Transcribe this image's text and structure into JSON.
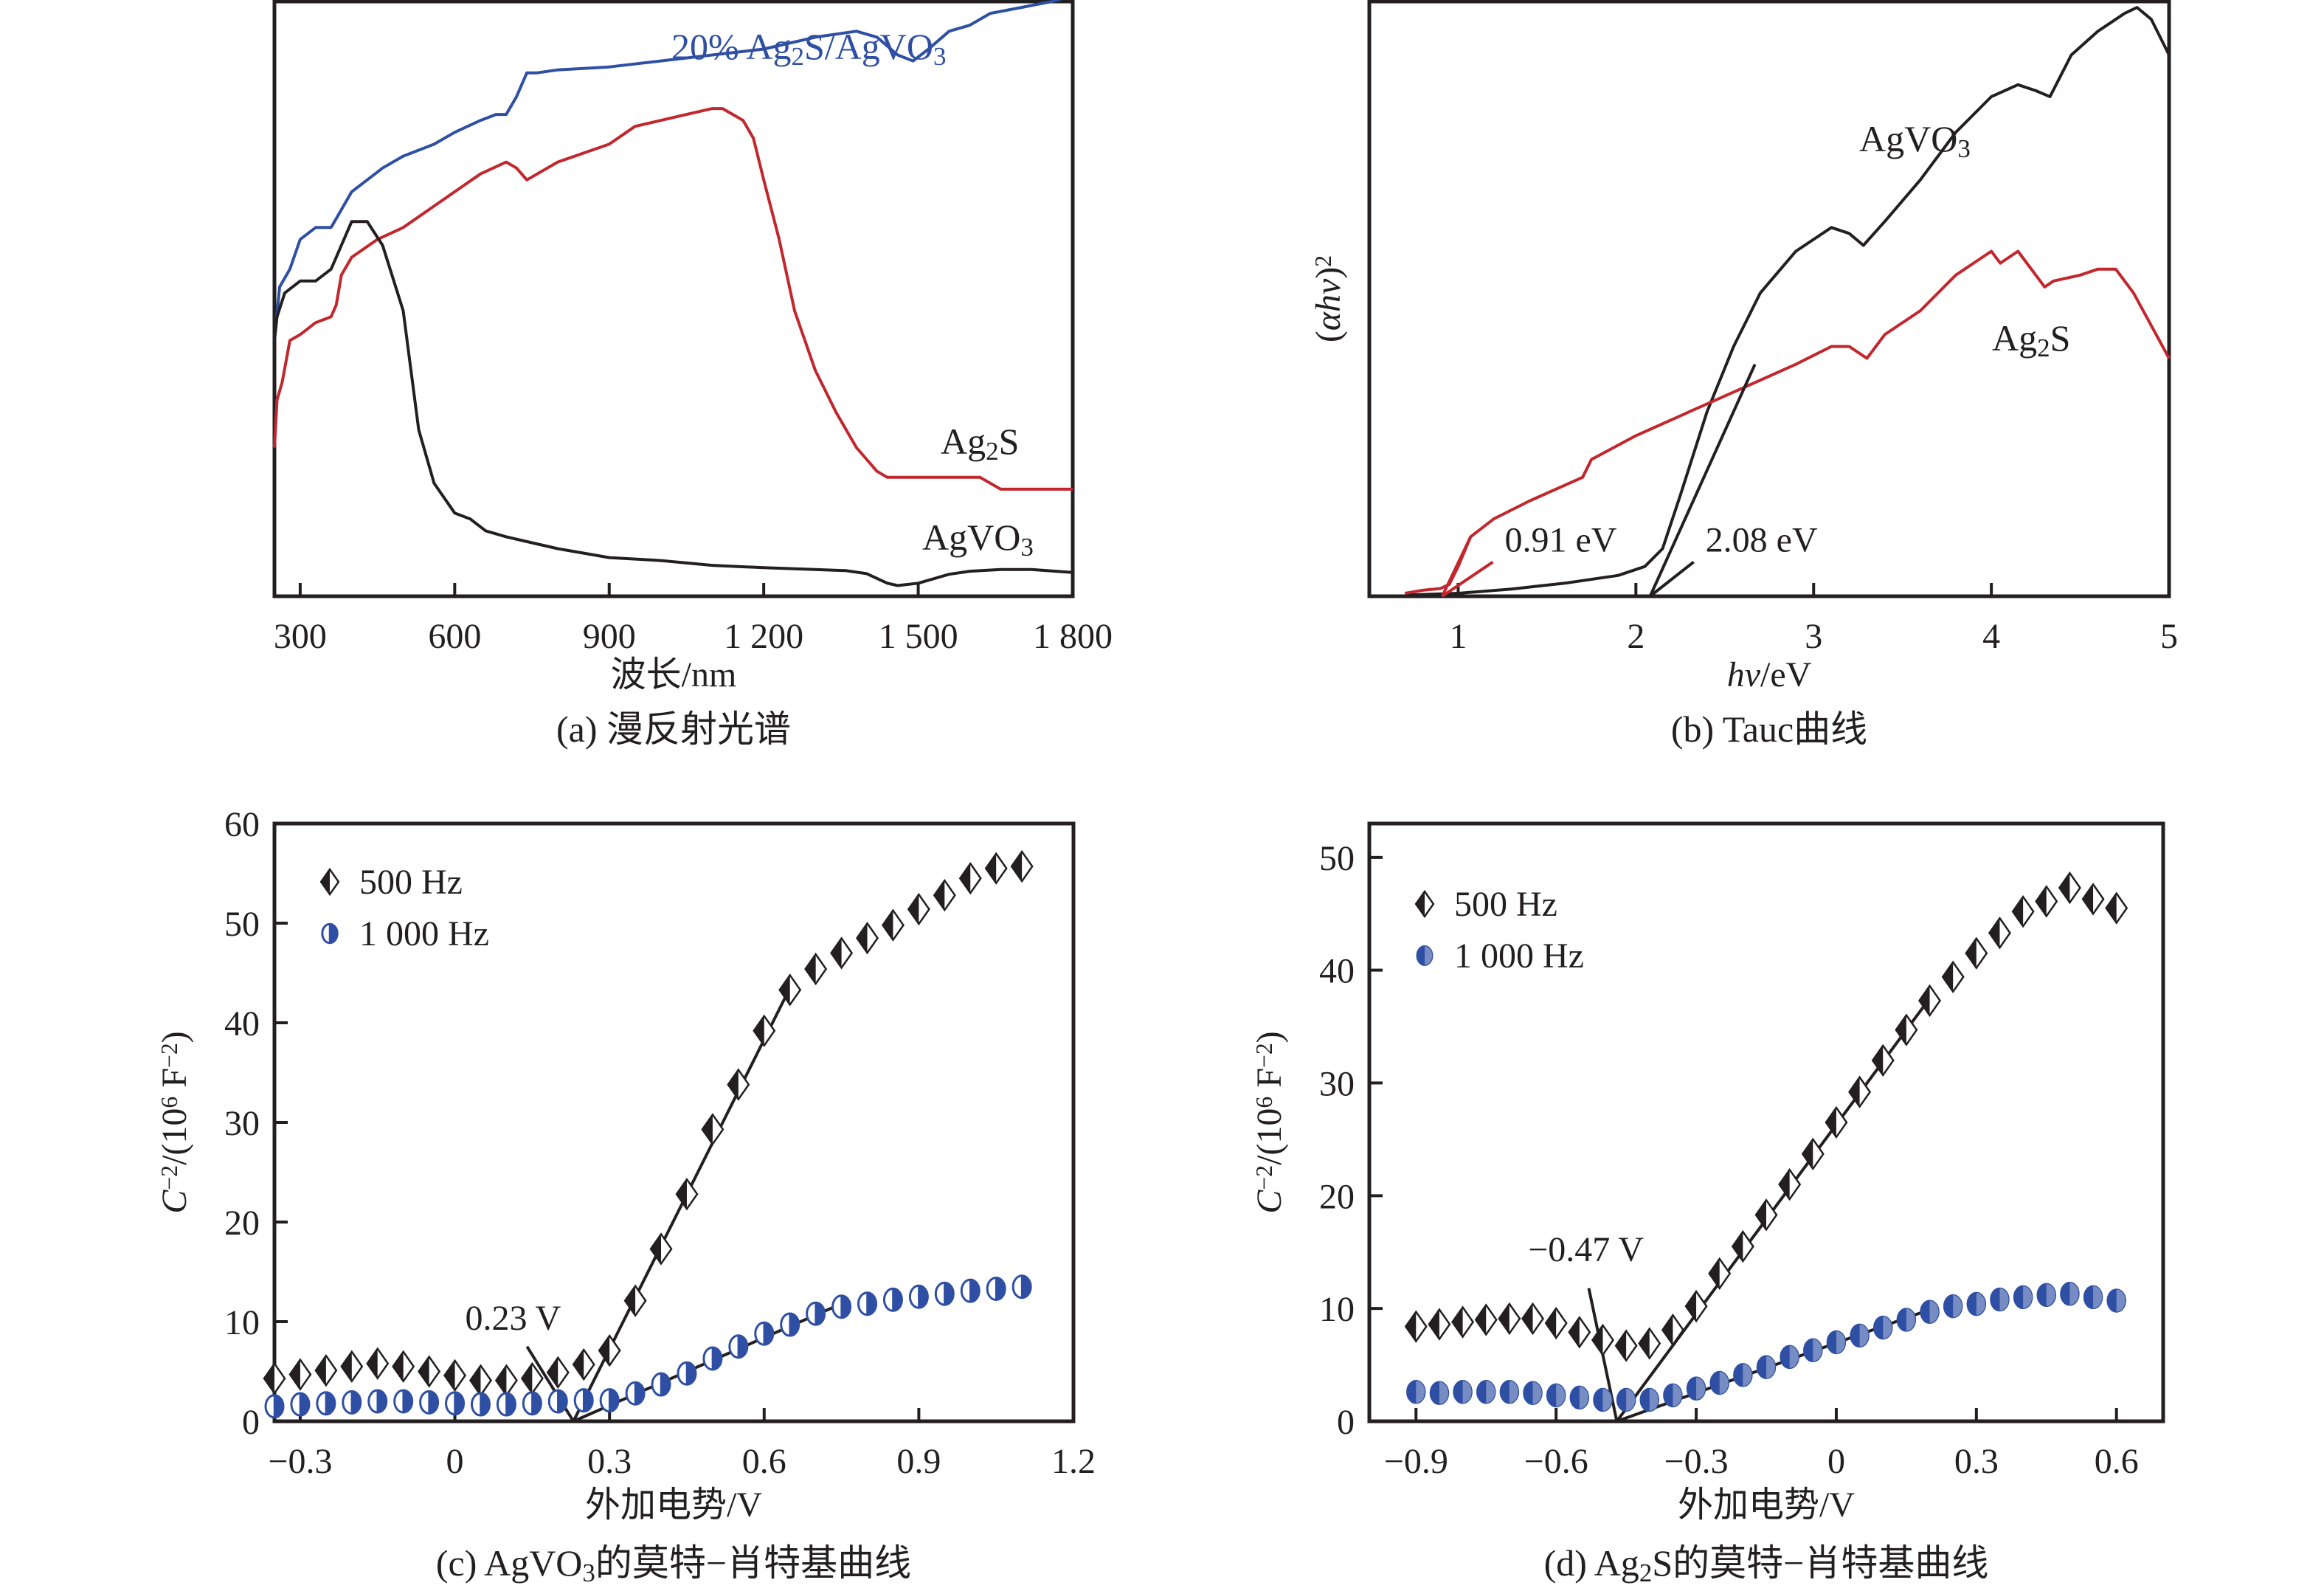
{
  "colors": {
    "black": "#231f20",
    "red": "#c1272d",
    "blue": "#2e4fa3"
  },
  "chart_data": [
    {
      "id": "a",
      "type": "line",
      "caption": "(a) 漫反射光谱",
      "xlabel": "波长/nm",
      "ylabel": "",
      "xlim": [
        250,
        1800
      ],
      "ylim": [
        0,
        100
      ],
      "xticks": [
        300,
        600,
        900,
        1200,
        1500,
        1800
      ],
      "xtick_labels": [
        "300",
        "600",
        "900",
        "1 200",
        "1 500",
        "1 800"
      ],
      "yticks": [],
      "grid": false,
      "series": [
        {
          "name": "20% Ag2S/AgVO3",
          "label_parts": [
            [
              "20% Ag",
              ""
            ],
            [
              "2",
              "sub"
            ],
            [
              "S/AgVO",
              ""
            ],
            [
              "3",
              "sub"
            ]
          ],
          "color": "blue",
          "x": [
            250,
            260,
            280,
            300,
            330,
            360,
            380,
            400,
            430,
            460,
            500,
            560,
            600,
            650,
            680,
            700,
            720,
            740,
            760,
            800,
            900,
            1000,
            1100,
            1200,
            1300,
            1380,
            1420,
            1460,
            1490,
            1520,
            1560,
            1600,
            1640,
            1700,
            1760,
            1800
          ],
          "y": [
            43,
            52,
            55,
            60,
            62,
            62,
            65,
            68,
            70,
            72,
            74,
            76,
            78,
            80,
            81,
            81,
            84,
            88,
            88,
            88.5,
            89,
            90,
            91,
            92,
            94,
            95,
            94,
            91,
            90,
            92,
            95,
            96,
            98,
            99,
            100,
            101
          ]
        },
        {
          "name": "Ag2S",
          "label_parts": [
            [
              "Ag",
              ""
            ],
            [
              "2",
              "sub"
            ],
            [
              "S",
              ""
            ]
          ],
          "color": "red",
          "x": [
            250,
            255,
            265,
            280,
            300,
            330,
            360,
            370,
            380,
            400,
            450,
            500,
            600,
            650,
            700,
            720,
            740,
            800,
            900,
            950,
            1000,
            1050,
            1100,
            1120,
            1140,
            1160,
            1180,
            1200,
            1230,
            1260,
            1300,
            1340,
            1380,
            1420,
            1440,
            1460,
            1500,
            1540,
            1580,
            1620,
            1660,
            1700,
            1760,
            1800
          ],
          "y": [
            25,
            33,
            36,
            43,
            44,
            46,
            47,
            49,
            54,
            57,
            60,
            62,
            68,
            71,
            73,
            72,
            70,
            73,
            76,
            79,
            80,
            81,
            82,
            82,
            81,
            80,
            77,
            70,
            60,
            48,
            38,
            31,
            25,
            21,
            20,
            20,
            20,
            20,
            20,
            20,
            18,
            18,
            18,
            18
          ]
        },
        {
          "name": "AgVO3",
          "label_parts": [
            [
              "AgVO",
              ""
            ],
            [
              "3",
              "sub"
            ]
          ],
          "color": "black",
          "x": [
            250,
            255,
            270,
            300,
            330,
            360,
            380,
            400,
            430,
            460,
            500,
            530,
            560,
            600,
            630,
            660,
            700,
            750,
            800,
            900,
            1000,
            1100,
            1200,
            1300,
            1360,
            1400,
            1440,
            1460,
            1500,
            1560,
            1600,
            1660,
            1720,
            1800
          ],
          "y": [
            43,
            47,
            51,
            53,
            53,
            55,
            59,
            63,
            63,
            59,
            48,
            28,
            19,
            14,
            13,
            11,
            10,
            9,
            8,
            6.5,
            6,
            5.2,
            4.8,
            4.5,
            4.3,
            3.8,
            2.2,
            1.8,
            2.2,
            3.7,
            4.2,
            4.5,
            4.5,
            4.0
          ]
        }
      ]
    },
    {
      "id": "b",
      "type": "line",
      "caption": "(b) Tauc曲线",
      "xlabel_parts": [
        [
          "hv",
          "italic"
        ],
        [
          "/eV",
          ""
        ]
      ],
      "ylabel_parts": [
        [
          "(",
          ""
        ],
        [
          "αhv",
          "italic"
        ],
        [
          ")",
          ""
        ],
        [
          "2",
          "sup"
        ]
      ],
      "xlim": [
        0.5,
        5
      ],
      "ylim": [
        0,
        100
      ],
      "xticks": [
        1,
        2,
        3,
        4,
        5
      ],
      "xtick_labels": [
        "1",
        "2",
        "3",
        "4",
        "5"
      ],
      "yticks": [],
      "grid": false,
      "series": [
        {
          "name": "AgVO3",
          "label_parts": [
            [
              "AgVO",
              ""
            ],
            [
              "3",
              "sub"
            ]
          ],
          "color": "black",
          "x": [
            0.7,
            1.0,
            1.3,
            1.6,
            1.9,
            2.05,
            2.15,
            2.25,
            2.4,
            2.55,
            2.7,
            2.9,
            3.1,
            3.2,
            3.28,
            3.4,
            3.6,
            3.8,
            4.0,
            4.15,
            4.25,
            4.33,
            4.45,
            4.6,
            4.75,
            4.82,
            4.9,
            5.0
          ],
          "y": [
            0.2,
            0.5,
            1.2,
            2.2,
            3.5,
            5,
            8,
            17,
            31,
            42,
            51,
            58,
            62,
            61,
            59,
            63,
            70,
            78,
            84,
            86,
            85,
            84,
            91,
            95,
            98,
            99,
            97,
            91
          ]
        },
        {
          "name": "Ag2S",
          "label_parts": [
            [
              "Ag",
              ""
            ],
            [
              "2",
              "sub"
            ],
            [
              "S",
              ""
            ]
          ],
          "color": "red",
          "x": [
            0.7,
            0.8,
            0.9,
            0.95,
            1.0,
            1.07,
            1.2,
            1.4,
            1.7,
            1.75,
            2.0,
            2.3,
            2.6,
            2.9,
            3.1,
            3.2,
            3.3,
            3.4,
            3.6,
            3.8,
            4.0,
            4.05,
            4.15,
            4.3,
            4.35,
            4.5,
            4.6,
            4.7,
            4.8,
            5.0
          ],
          "y": [
            0.5,
            1,
            1.3,
            2,
            5,
            10,
            13,
            16,
            20,
            23,
            27,
            31,
            35,
            39,
            42,
            42,
            40,
            44,
            48,
            54,
            58,
            56,
            58,
            52,
            53,
            54,
            55,
            55,
            51,
            40
          ]
        },
        {
          "name": "AgVO3 tangent",
          "color": "black",
          "x": [
            2.08,
            2.67
          ],
          "y": [
            0,
            39
          ]
        },
        {
          "name": "Ag2S tangent",
          "color": "red",
          "x": [
            0.91,
            1.07
          ],
          "y": [
            0,
            10
          ]
        }
      ],
      "annotations": [
        {
          "text": "0.91 eV",
          "x": 0.91,
          "y": 0,
          "color": "red",
          "label_x": 1.22,
          "label_y": 7.5
        },
        {
          "text": "2.08 eV",
          "x": 2.08,
          "y": 0,
          "color": "black",
          "label_x": 2.35,
          "label_y": 7.5
        }
      ]
    },
    {
      "id": "c",
      "type": "scatter",
      "caption_parts": [
        [
          "(c) AgVO",
          ""
        ],
        [
          "3",
          "sub"
        ],
        [
          "的莫特−肖特基曲线",
          ""
        ]
      ],
      "xlabel": "外加电势/V",
      "ylabel_parts": [
        [
          "C",
          "italic"
        ],
        [
          "−2",
          "sup"
        ],
        [
          "/(10",
          ""
        ],
        [
          "6",
          "sup"
        ],
        [
          " F",
          ""
        ],
        [
          "−2",
          "sup"
        ],
        [
          ")",
          ""
        ]
      ],
      "xlim": [
        -0.35,
        1.2
      ],
      "ylim": [
        0,
        60
      ],
      "xticks": [
        -0.3,
        0,
        0.3,
        0.6,
        0.9,
        1.2
      ],
      "xtick_labels": [
        "−0.3",
        "0",
        "0.3",
        "0.6",
        "0.9",
        "1.2"
      ],
      "yticks": [
        0,
        10,
        20,
        30,
        40,
        50,
        60
      ],
      "ytick_labels": [
        "0",
        "10",
        "20",
        "30",
        "40",
        "50",
        "60"
      ],
      "grid": false,
      "legend": {
        "position": "top-left",
        "entries": [
          "500 Hz",
          "1 000 Hz"
        ]
      },
      "series": [
        {
          "name": "500 Hz",
          "marker": "half-diamond",
          "color": "black",
          "x": [
            -0.35,
            -0.3,
            -0.25,
            -0.2,
            -0.15,
            -0.1,
            -0.05,
            0,
            0.05,
            0.1,
            0.15,
            0.2,
            0.25,
            0.3,
            0.35,
            0.4,
            0.45,
            0.5,
            0.55,
            0.6,
            0.65,
            0.7,
            0.75,
            0.8,
            0.85,
            0.9,
            0.95,
            1.0,
            1.05,
            1.1
          ],
          "y": [
            4.3,
            4.7,
            5.1,
            5.5,
            5.8,
            5.5,
            5.0,
            4.6,
            4.1,
            4.1,
            4.3,
            4.9,
            5.7,
            7.1,
            12.1,
            17.3,
            22.8,
            29.3,
            33.8,
            39.2,
            43.3,
            45.4,
            47.0,
            48.5,
            49.8,
            51.4,
            52.8,
            54.5,
            55.5,
            55.7
          ]
        },
        {
          "name": "1 000 Hz",
          "marker": "half-circle",
          "color": "blue",
          "x": [
            -0.35,
            -0.3,
            -0.25,
            -0.2,
            -0.15,
            -0.1,
            -0.05,
            0,
            0.05,
            0.1,
            0.15,
            0.2,
            0.25,
            0.3,
            0.35,
            0.4,
            0.45,
            0.5,
            0.55,
            0.6,
            0.65,
            0.7,
            0.75,
            0.8,
            0.85,
            0.9,
            0.95,
            1.0,
            1.05,
            1.1
          ],
          "y": [
            1.5,
            1.7,
            1.8,
            1.9,
            2.0,
            2.0,
            1.9,
            1.8,
            1.7,
            1.7,
            1.8,
            2.0,
            2.1,
            2.1,
            2.8,
            3.7,
            4.8,
            6.3,
            7.5,
            8.8,
            9.7,
            10.8,
            11.5,
            11.8,
            12.2,
            12.5,
            12.8,
            13.1,
            13.3,
            13.5
          ]
        }
      ],
      "fit_lines": [
        {
          "color": "black",
          "x": [
            0.23,
            0.65
          ],
          "y": [
            0,
            43.5
          ]
        },
        {
          "color": "black",
          "x": [
            0.23,
            0.75
          ],
          "y": [
            0,
            11.8
          ]
        },
        {
          "color": "black",
          "x": [
            0.23,
            0.14
          ],
          "y": [
            0,
            7.5
          ]
        }
      ],
      "annotations": [
        {
          "text": "0.23 V",
          "x": 0.23,
          "y": 0,
          "label_x": 0.02,
          "label_y": 9.2
        }
      ]
    },
    {
      "id": "d",
      "type": "scatter",
      "caption_parts": [
        [
          "(d) Ag",
          ""
        ],
        [
          "2",
          "sub"
        ],
        [
          "S的莫特−肖特基曲线",
          ""
        ]
      ],
      "xlabel": "外加电势/V",
      "ylabel_parts": [
        [
          "C",
          "italic"
        ],
        [
          "−2",
          "sup"
        ],
        [
          "/(10",
          ""
        ],
        [
          "6",
          "sup"
        ],
        [
          " F",
          ""
        ],
        [
          "−2",
          "sup"
        ],
        [
          ")",
          ""
        ]
      ],
      "xlim": [
        -1.0,
        0.7
      ],
      "ylim": [
        0,
        53
      ],
      "xticks": [
        -0.9,
        -0.6,
        -0.3,
        0,
        0.3,
        0.6
      ],
      "xtick_labels": [
        "−0.9",
        "−0.6",
        "−0.3",
        "0",
        "0.3",
        "0.6"
      ],
      "yticks": [
        0,
        10,
        20,
        30,
        40,
        50
      ],
      "ytick_labels": [
        "0",
        "10",
        "20",
        "30",
        "40",
        "50"
      ],
      "grid": false,
      "legend": {
        "position": "top-left",
        "entries": [
          "500 Hz",
          "1 000 Hz"
        ]
      },
      "series": [
        {
          "name": "500 Hz",
          "marker": "half-diamond",
          "color": "black",
          "x": [
            -0.9,
            -0.85,
            -0.8,
            -0.75,
            -0.7,
            -0.65,
            -0.6,
            -0.55,
            -0.5,
            -0.45,
            -0.4,
            -0.35,
            -0.3,
            -0.25,
            -0.2,
            -0.15,
            -0.1,
            -0.05,
            0,
            0.05,
            0.1,
            0.15,
            0.2,
            0.25,
            0.3,
            0.35,
            0.4,
            0.45,
            0.5,
            0.55,
            0.6
          ],
          "y": [
            8.4,
            8.6,
            8.8,
            9.0,
            9.1,
            9.1,
            8.7,
            7.9,
            7.2,
            6.7,
            6.9,
            8.1,
            10.2,
            13.1,
            15.5,
            18.3,
            21.0,
            23.7,
            26.5,
            29.2,
            32.0,
            34.7,
            37.3,
            39.4,
            41.5,
            43.3,
            45.2,
            46.1,
            47.3,
            46.3,
            45.5
          ]
        },
        {
          "name": "1 000 Hz",
          "marker": "half-circle",
          "color": "blue",
          "x": [
            -0.9,
            -0.85,
            -0.8,
            -0.75,
            -0.7,
            -0.65,
            -0.6,
            -0.55,
            -0.5,
            -0.45,
            -0.4,
            -0.35,
            -0.3,
            -0.25,
            -0.2,
            -0.15,
            -0.1,
            -0.05,
            0,
            0.05,
            0.1,
            0.15,
            0.2,
            0.25,
            0.3,
            0.35,
            0.4,
            0.45,
            0.5,
            0.55,
            0.6
          ],
          "y": [
            2.6,
            2.5,
            2.6,
            2.6,
            2.6,
            2.5,
            2.3,
            2.1,
            1.9,
            1.9,
            1.9,
            2.3,
            2.9,
            3.4,
            4.1,
            4.8,
            5.7,
            6.3,
            7.0,
            7.6,
            8.3,
            9.0,
            9.7,
            10.2,
            10.4,
            10.8,
            11.0,
            11.2,
            11.3,
            11.0,
            10.7
          ]
        }
      ],
      "fit_lines": [
        {
          "color": "black",
          "x": [
            -0.47,
            0.2
          ],
          "y": [
            0,
            37.5
          ]
        },
        {
          "color": "black",
          "x": [
            -0.47,
            0.2
          ],
          "y": [
            0,
            9.9
          ]
        },
        {
          "color": "black",
          "x": [
            -0.47,
            -0.53
          ],
          "y": [
            0,
            11.8
          ]
        }
      ],
      "annotations": [
        {
          "text": "−0.47 V",
          "x": -0.47,
          "y": 0,
          "label_x": -0.66,
          "label_y": 14.2
        }
      ]
    }
  ]
}
